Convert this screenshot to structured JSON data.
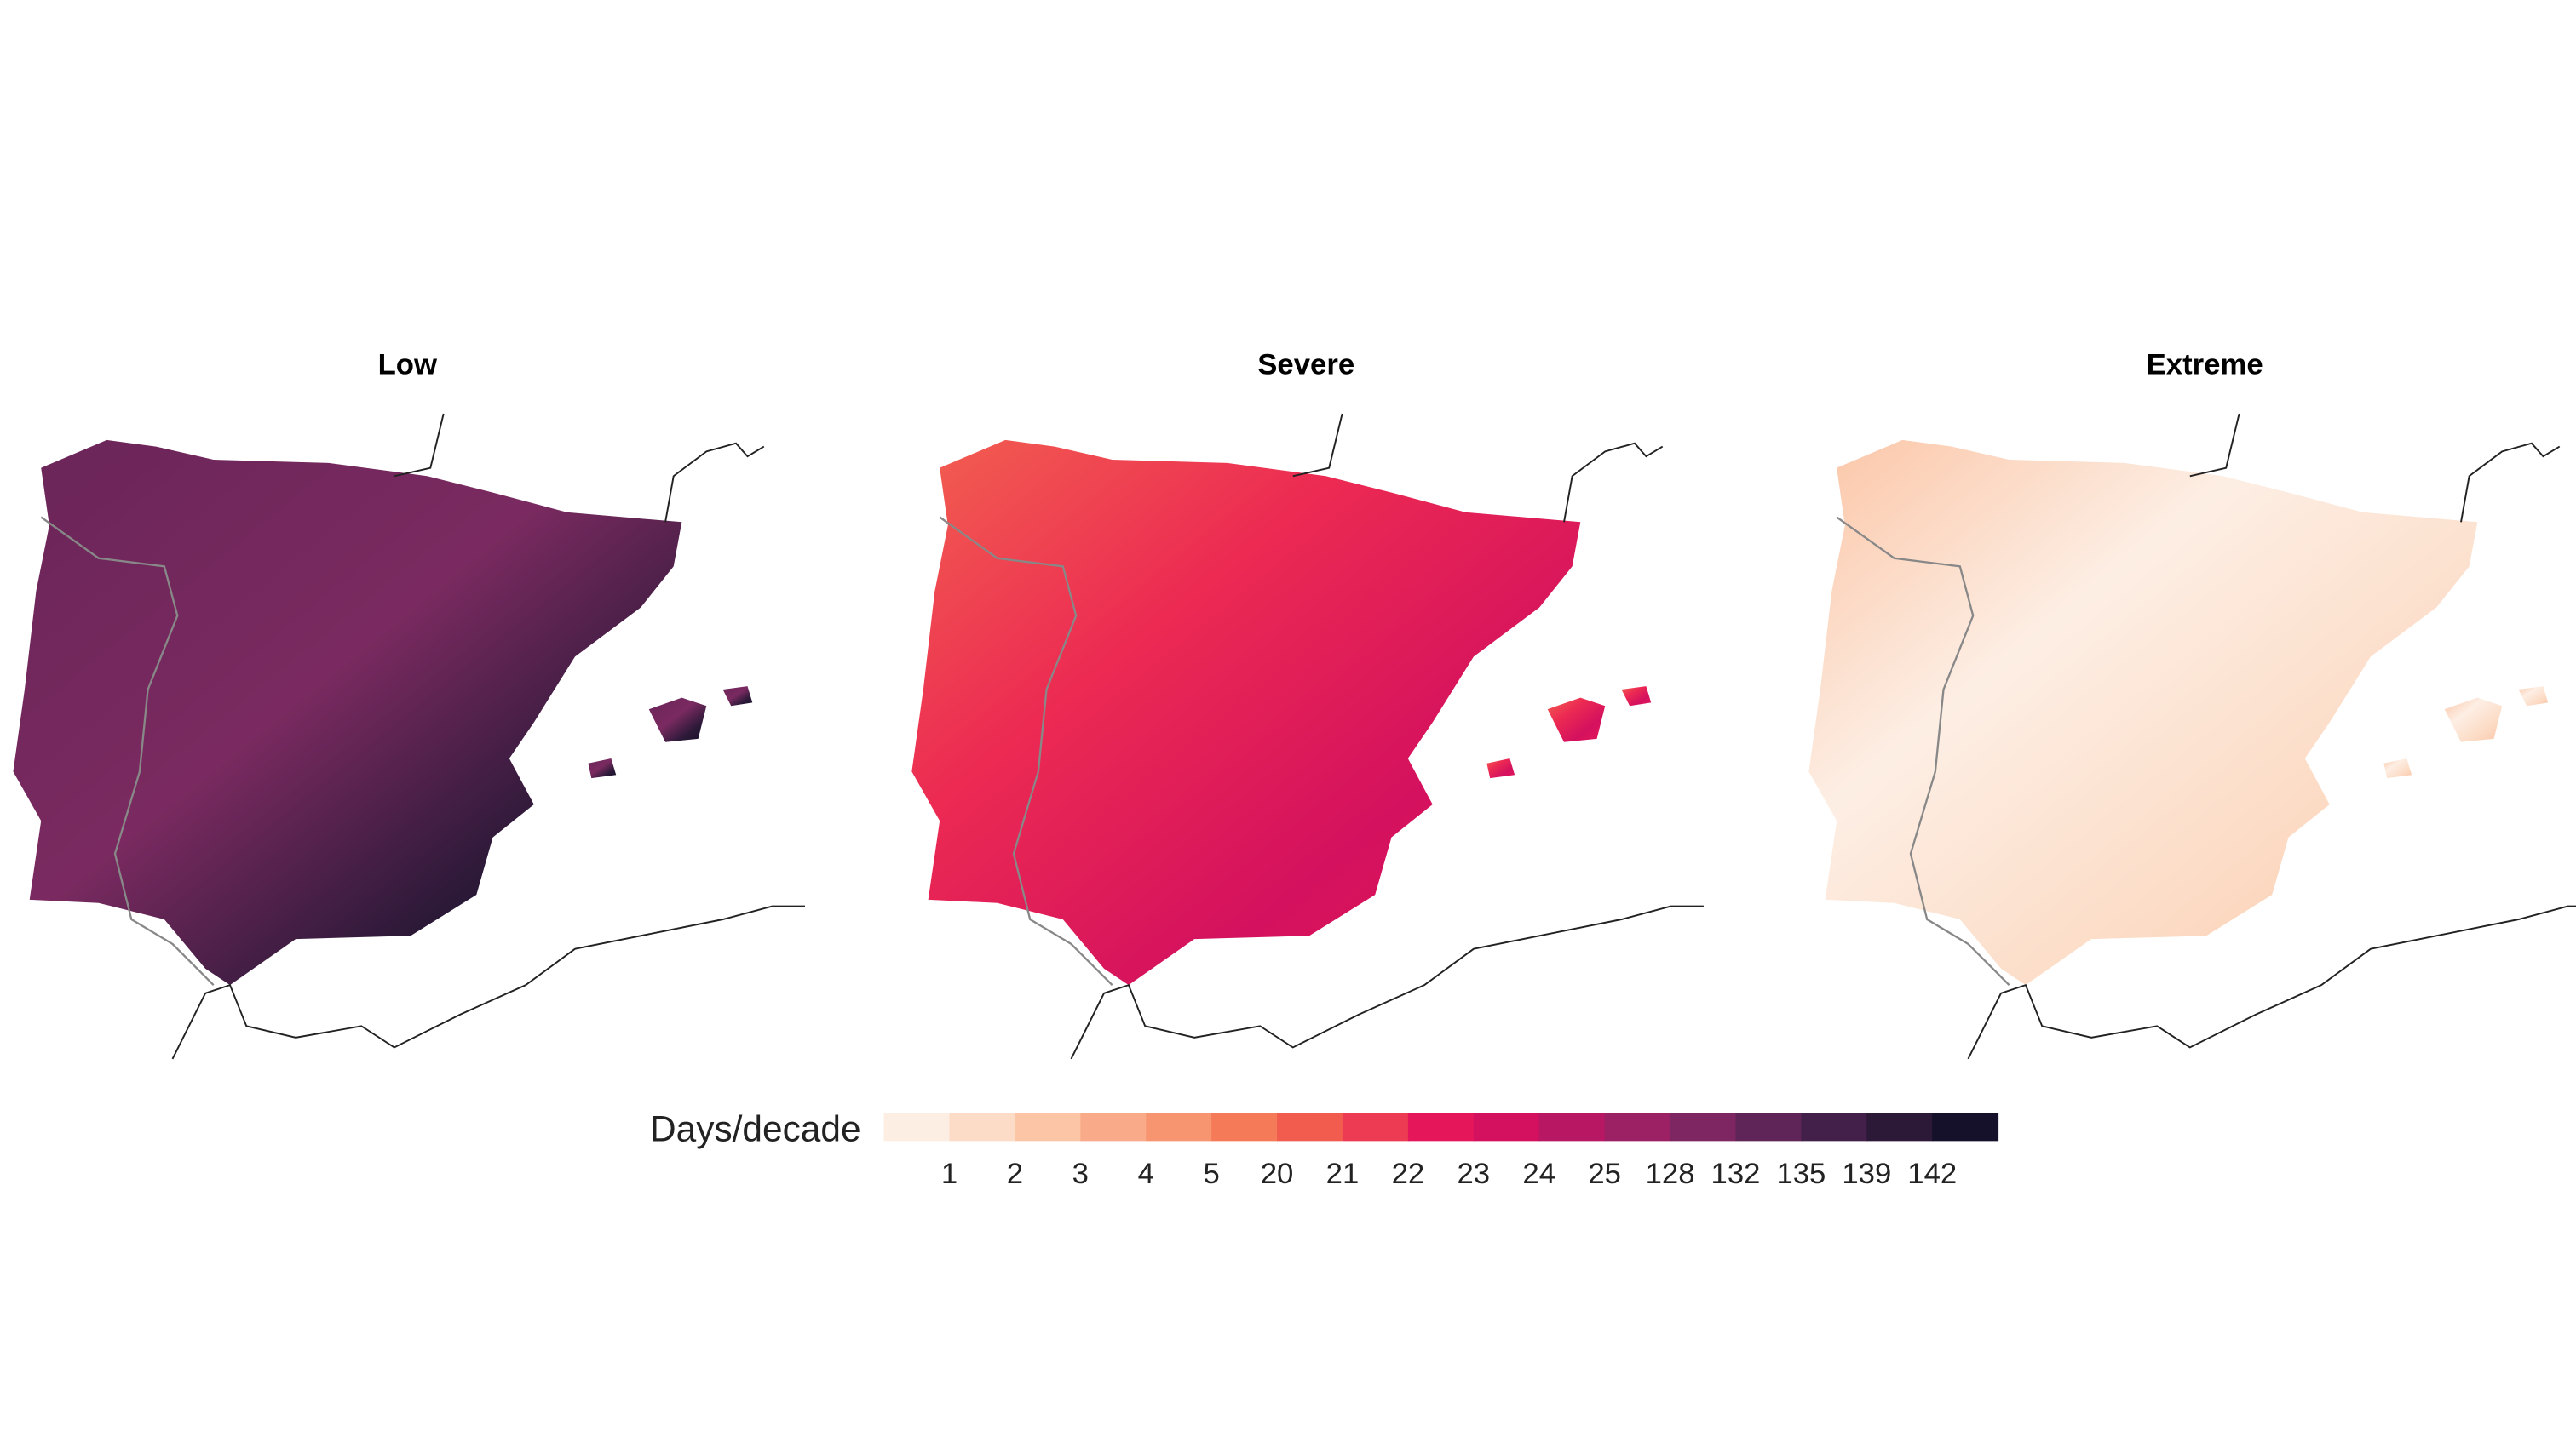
{
  "panels": [
    {
      "title": "Low"
    },
    {
      "title": "Severe"
    },
    {
      "title": "Extreme"
    }
  ],
  "legend": {
    "title": "Days/decade",
    "breaks": [
      1,
      2,
      3,
      4,
      5,
      20,
      21,
      22,
      23,
      24,
      25,
      128,
      132,
      135,
      139,
      142
    ],
    "colors": [
      "#fdeee4",
      "#fcdcc6",
      "#fbc5a6",
      "#f9ab89",
      "#f79570",
      "#f47a58",
      "#f15c4e",
      "#ec3b52",
      "#e5175a",
      "#d4115e",
      "#b81763",
      "#9c2164",
      "#7d2662",
      "#5f2558",
      "#43204a",
      "#2c1938",
      "#15112a"
    ]
  }
}
